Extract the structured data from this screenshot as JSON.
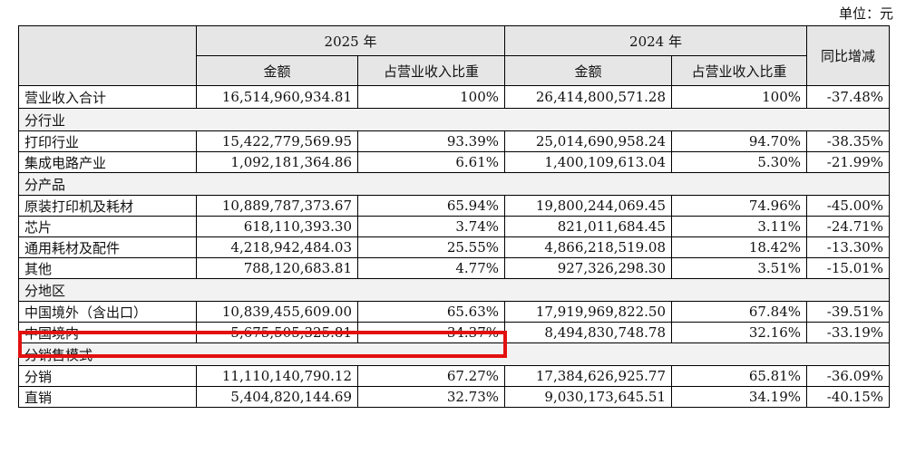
{
  "unit_label": "单位：元",
  "header": {
    "year_2025": "2025 年",
    "year_2024": "2024 年",
    "yoy": "同比增减",
    "amount": "金额",
    "share": "占营业收入比重"
  },
  "rows": [
    {
      "type": "data",
      "name": "营业收入合计",
      "amt2025": "16,514,960,934.81",
      "pct2025": "100%",
      "amt2024": "26,414,800,571.28",
      "pct2024": "100%",
      "yoy": "-37.48%"
    },
    {
      "type": "section",
      "name": "分行业"
    },
    {
      "type": "data",
      "name": "打印行业",
      "amt2025": "15,422,779,569.95",
      "pct2025": "93.39%",
      "amt2024": "25,014,690,958.24",
      "pct2024": "94.70%",
      "yoy": "-38.35%"
    },
    {
      "type": "data",
      "name": "集成电路产业",
      "amt2025": "1,092,181,364.86",
      "pct2025": "6.61%",
      "amt2024": "1,400,109,613.04",
      "pct2024": "5.30%",
      "yoy": "-21.99%"
    },
    {
      "type": "section",
      "name": "分产品"
    },
    {
      "type": "data",
      "name": "原装打印机及耗材",
      "amt2025": "10,889,787,373.67",
      "pct2025": "65.94%",
      "amt2024": "19,800,244,069.45",
      "pct2024": "74.96%",
      "yoy": "-45.00%"
    },
    {
      "type": "data",
      "name": "芯片",
      "amt2025": "618,110,393.30",
      "pct2025": "3.74%",
      "amt2024": "821,011,684.45",
      "pct2024": "3.11%",
      "yoy": "-24.71%"
    },
    {
      "type": "data",
      "name": "通用耗材及配件",
      "amt2025": "4,218,942,484.03",
      "pct2025": "25.55%",
      "amt2024": "4,866,218,519.08",
      "pct2024": "18.42%",
      "yoy": "-13.30%"
    },
    {
      "type": "data",
      "name": "其他",
      "amt2025": "788,120,683.81",
      "pct2025": "4.77%",
      "amt2024": "927,326,298.30",
      "pct2024": "3.51%",
      "yoy": "-15.01%"
    },
    {
      "type": "section",
      "name": "分地区"
    },
    {
      "type": "data",
      "name": "中国境外（含出口）",
      "amt2025": "10,839,455,609.00",
      "pct2025": "65.63%",
      "amt2024": "17,919,969,822.50",
      "pct2024": "67.84%",
      "yoy": "-39.51%"
    },
    {
      "type": "data",
      "name": "中国境内",
      "amt2025": "5,675,505,325.81",
      "pct2025": "34.37%",
      "amt2024": "8,494,830,748.78",
      "pct2024": "32.16%",
      "yoy": "-33.19%"
    },
    {
      "type": "section",
      "name": "分销售模式"
    },
    {
      "type": "data",
      "name": "分销",
      "amt2025": "11,110,140,790.12",
      "pct2025": "67.27%",
      "amt2024": "17,384,626,925.77",
      "pct2024": "65.81%",
      "yoy": "-36.09%"
    },
    {
      "type": "data",
      "name": "直销",
      "amt2025": "5,404,820,144.69",
      "pct2025": "32.73%",
      "amt2024": "9,030,173,645.51",
      "pct2024": "34.19%",
      "yoy": "-40.15%"
    }
  ],
  "highlight_color": "#e31010"
}
